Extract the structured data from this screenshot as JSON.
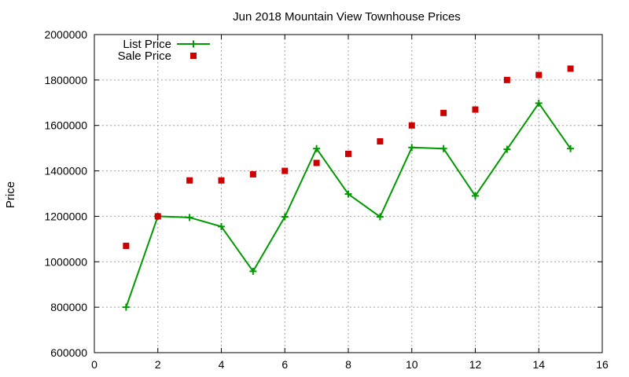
{
  "chart_data": {
    "type": "line",
    "title": "Jun 2018 Mountain View Townhouse Prices",
    "xlabel": "",
    "ylabel": "Price",
    "xlim": [
      0,
      16
    ],
    "ylim": [
      600000,
      2000000
    ],
    "x_ticks": [
      "0",
      "2",
      "4",
      "6",
      "8",
      "10",
      "12",
      "14",
      "16"
    ],
    "y_ticks": [
      "600000",
      "800000",
      "1000000",
      "1200000",
      "1400000",
      "1600000",
      "1800000",
      "2000000"
    ],
    "grid": true,
    "legend_position": "top-left",
    "series": [
      {
        "name": "List Price",
        "style": "line-with-plus-markers",
        "color": "#009900",
        "x": [
          1,
          2,
          3,
          4,
          5,
          6,
          7,
          8,
          9,
          10,
          11,
          12,
          13,
          14,
          15
        ],
        "values": [
          800000,
          1200000,
          1195000,
          1155000,
          958000,
          1198000,
          1498000,
          1298000,
          1198000,
          1503000,
          1498000,
          1290000,
          1495000,
          1698000,
          1498000
        ]
      },
      {
        "name": "Sale Price",
        "style": "square-markers",
        "color": "#cc0000",
        "x": [
          1,
          2,
          3,
          4,
          5,
          6,
          7,
          8,
          9,
          10,
          11,
          12,
          13,
          14,
          15
        ],
        "values": [
          1070000,
          1200000,
          1358000,
          1358000,
          1385000,
          1400000,
          1435000,
          1475000,
          1530000,
          1600000,
          1655000,
          1670000,
          1800000,
          1822000,
          1850000
        ]
      }
    ]
  }
}
